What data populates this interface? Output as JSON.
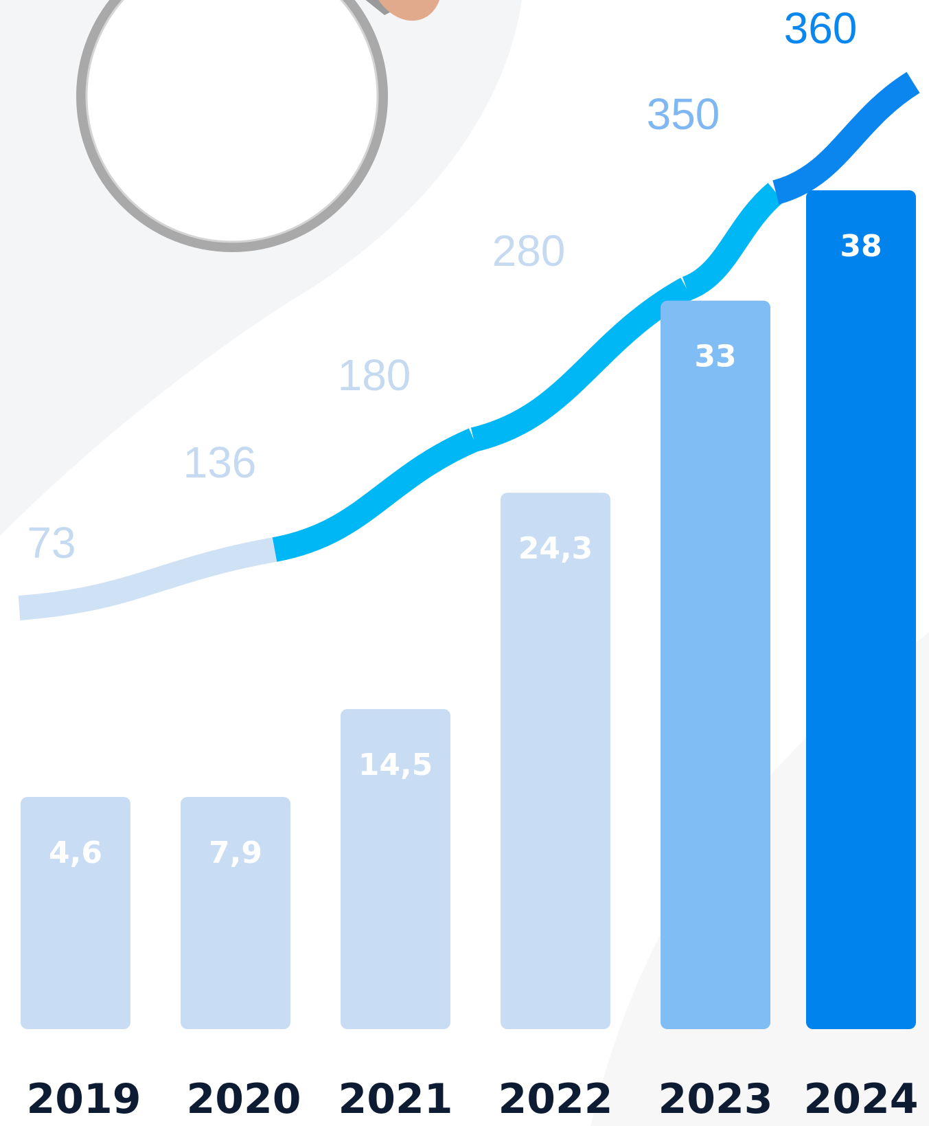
{
  "chart_data": {
    "type": "bar",
    "categories": [
      "2019",
      "2020",
      "2021",
      "2022",
      "2023",
      "2024"
    ],
    "series": [
      {
        "values": [
          4.6,
          7.9,
          14.5,
          24.3,
          33,
          38
        ],
        "value_labels": [
          "4,6",
          "7,9",
          "14,5",
          "24,3",
          "33",
          "38"
        ],
        "colors": [
          "#c8dcf3",
          "#c8dcf3",
          "#c8dcf3",
          "#c8dcf3",
          "#80bdf4",
          "#0183ee"
        ]
      },
      {
        "type": "line",
        "values": [
          73,
          136,
          180,
          280,
          350,
          360
        ],
        "value_labels": [
          "73",
          "136",
          "180",
          "280",
          "350",
          "360"
        ],
        "label_colors": [
          "#c5daf1",
          "#c5daf1",
          "#c5daf1",
          "#c5daf1",
          "#7eb7f1",
          "#0a86ef"
        ],
        "segment_colors": [
          "#cfe1f5",
          "#00b7f5",
          "#00b7f5",
          "#00b7f5",
          "#0b86ee"
        ]
      }
    ],
    "xlabel": "",
    "ylabel": "",
    "grid": false,
    "legend": "none"
  },
  "colors": {
    "background": "#ffffff",
    "background_shape": "#f4f5f7",
    "year_text": "#0d1b33",
    "bar_text": "#ffffff",
    "magnifier_rim": "#a9a9a9"
  },
  "decoration": {
    "icon": "magnifying-glass-icon"
  }
}
